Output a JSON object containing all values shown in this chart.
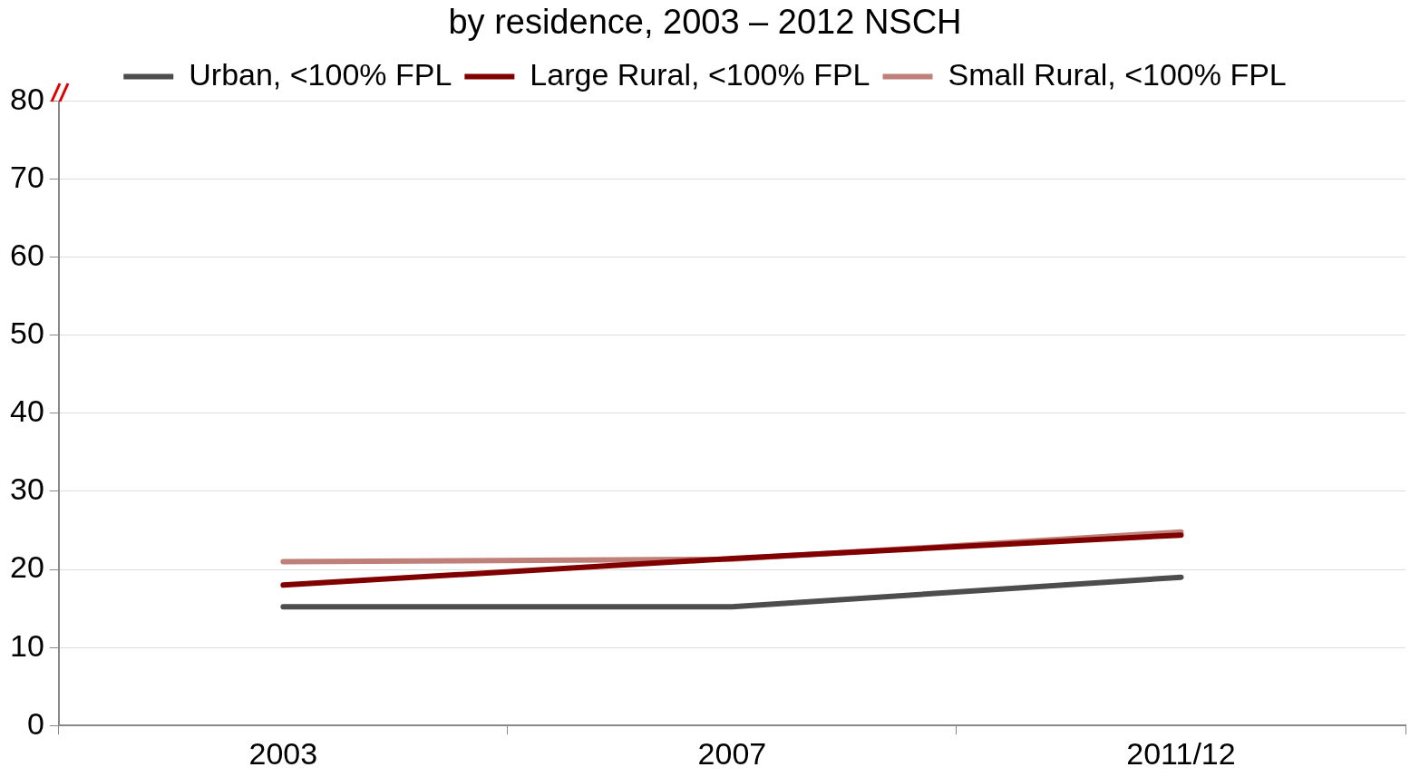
{
  "chart_data": {
    "type": "line",
    "title": "by residence, 2003 – 2012 NSCH",
    "categories": [
      "2003",
      "2007",
      "2011/12"
    ],
    "series": [
      {
        "name": "Urban, <100% FPL",
        "color": "#4d4d4d",
        "values": [
          15.2,
          15.2,
          19.0
        ]
      },
      {
        "name": "Large Rural, <100% FPL",
        "color": "#800000",
        "values": [
          18.0,
          21.4,
          24.4
        ]
      },
      {
        "name": "Small Rural, <100% FPL",
        "color": "#c0807a",
        "values": [
          21.0,
          21.3,
          24.8
        ]
      }
    ],
    "ylim": [
      0,
      80
    ],
    "yticks": [
      0,
      10,
      20,
      30,
      40,
      50,
      60,
      70,
      80
    ],
    "grid": "y",
    "legend": "top",
    "marker": "none",
    "line_style": "solid"
  }
}
